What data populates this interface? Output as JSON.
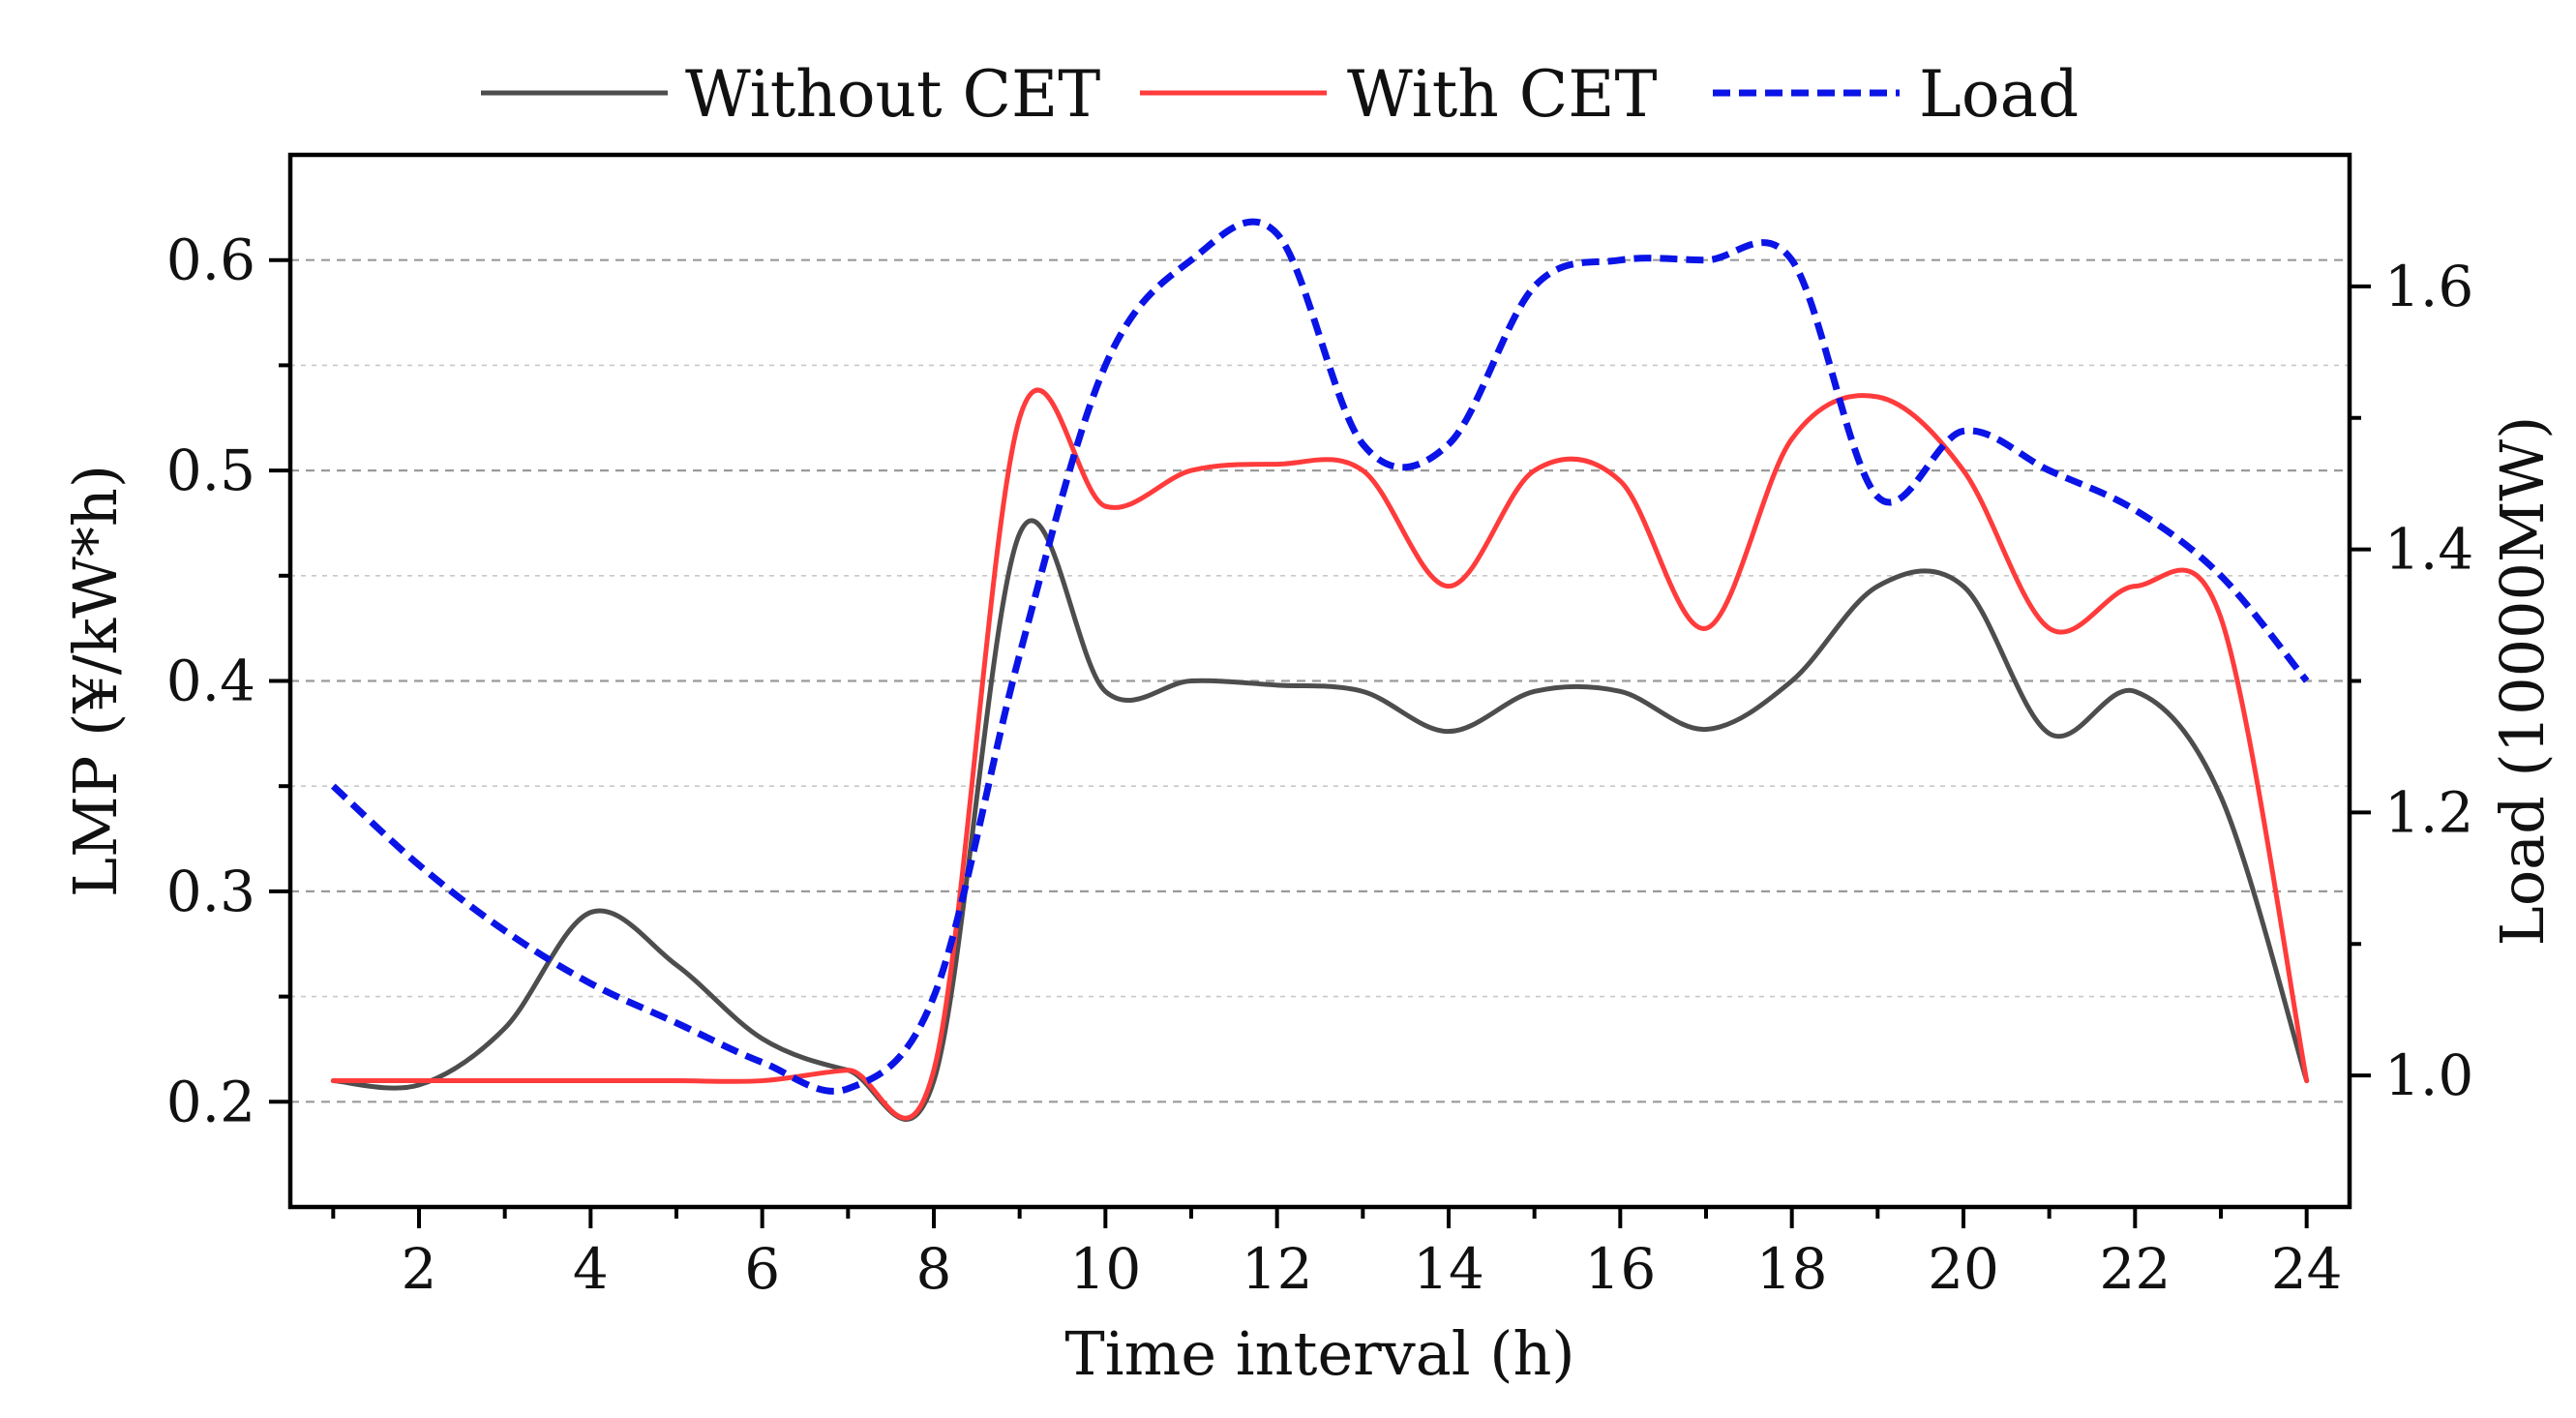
{
  "chart_data": {
    "type": "line",
    "title": "",
    "xlabel": "Time interval (h)",
    "ylabel": "LMP (¥/kW*h)",
    "y2label": "Load (10000MW)",
    "xlim": [
      0.5,
      24.5
    ],
    "ylim": [
      0.15,
      0.65
    ],
    "y2lim": [
      0.9,
      1.7
    ],
    "x_ticks": [
      2,
      4,
      6,
      8,
      10,
      12,
      14,
      16,
      18,
      20,
      22,
      24
    ],
    "x_tick_labels": [
      "2",
      "4",
      "6",
      "8",
      "10",
      "12",
      "14",
      "16",
      "18",
      "20",
      "22",
      "24"
    ],
    "y_ticks": [
      0.2,
      0.3,
      0.4,
      0.5,
      0.6
    ],
    "y_tick_labels": [
      "0.2",
      "0.3",
      "0.4",
      "0.5",
      "0.6"
    ],
    "y2_ticks": [
      1.0,
      1.2,
      1.4,
      1.6
    ],
    "y2_tick_labels": [
      "1.0",
      "1.2",
      "1.4",
      "1.6"
    ],
    "grid": true,
    "legend_position": "top-center",
    "colors": {
      "without_cet": "#4d4d4d",
      "with_cet": "#ff3b3b",
      "load": "#0a14e6",
      "grid": "#9a9a9a",
      "axis": "#000000"
    },
    "x": [
      1,
      2,
      3,
      4,
      5,
      6,
      7,
      8,
      9,
      10,
      11,
      12,
      13,
      14,
      15,
      16,
      17,
      18,
      19,
      20,
      21,
      22,
      23,
      24
    ],
    "series": [
      {
        "name": "Without CET",
        "axis": "left",
        "style": "solid",
        "values": [
          0.21,
          0.208,
          0.235,
          0.29,
          0.265,
          0.23,
          0.215,
          0.21,
          0.47,
          0.395,
          0.4,
          0.398,
          0.395,
          0.376,
          0.395,
          0.395,
          0.377,
          0.4,
          0.445,
          0.445,
          0.375,
          0.395,
          0.345,
          0.21
        ]
      },
      {
        "name": "With CET",
        "axis": "left",
        "style": "solid",
        "values": [
          0.21,
          0.21,
          0.21,
          0.21,
          0.21,
          0.21,
          0.215,
          0.215,
          0.525,
          0.483,
          0.5,
          0.503,
          0.5,
          0.445,
          0.5,
          0.495,
          0.425,
          0.515,
          0.535,
          0.5,
          0.425,
          0.445,
          0.43,
          0.21
        ]
      },
      {
        "name": "Load",
        "axis": "right",
        "style": "dashed",
        "values": [
          1.22,
          1.16,
          1.11,
          1.07,
          1.04,
          1.01,
          0.99,
          1.06,
          1.32,
          1.54,
          1.62,
          1.64,
          1.48,
          1.48,
          1.6,
          1.62,
          1.62,
          1.62,
          1.44,
          1.49,
          1.46,
          1.43,
          1.38,
          1.3
        ]
      }
    ]
  }
}
